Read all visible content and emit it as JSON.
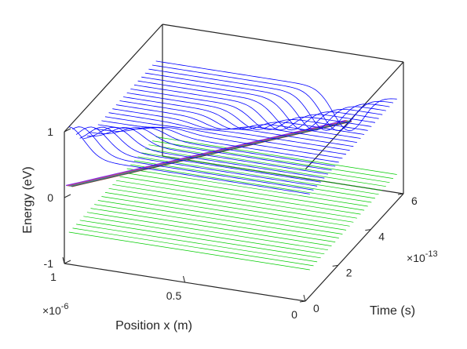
{
  "chart_data": {
    "type": "line",
    "view": "3d",
    "xlabel": "Position x (m)",
    "ylabel": "Time (s)",
    "zlabel": "Energy (eV)",
    "xlim": [
      0,
      1e-06
    ],
    "ylim": [
      0,
      6e-13
    ],
    "zlim": [
      -1,
      1
    ],
    "x_ticks": [
      0,
      5e-07,
      1e-06
    ],
    "x_tick_labels": [
      "0",
      "0.5",
      "1"
    ],
    "x_exponent": "10",
    "x_exponent_power": "-6",
    "y_ticks": [
      0,
      2e-13,
      4e-13,
      6e-13
    ],
    "y_tick_labels": [
      "0",
      "2",
      "4",
      "6"
    ],
    "y_exponent": "10",
    "y_exponent_power": "-13",
    "z_ticks": [
      -1,
      0,
      1
    ],
    "z_tick_labels": [
      "-1",
      "0",
      "1"
    ],
    "grid": false,
    "box": true,
    "time_steps": 25,
    "time_range": [
      2.8e-14,
      5.6e-13
    ],
    "series": [
      {
        "role": "conduction band edge",
        "color": "#0000ff",
        "x": [
          0,
          1e-06
        ],
        "shape": "flat level with a Gaussian bump that travels from x = 1.0e-6 at t = 0 to x = 0.2e-6 at t = 5.6e-13 and flips from +0.45 eV to -0.6 eV",
        "base_energy": 0.55,
        "bump_start_x": 1e-06,
        "bump_end_x": 2e-07,
        "bump_start_peak": 0.45,
        "bump_end_peak": -0.6
      },
      {
        "role": "valence band edge",
        "color": "#00cc00",
        "x": [
          0,
          1e-06
        ],
        "energy": -0.6
      },
      {
        "role": "electron trajectory",
        "color": "#7f2f2f",
        "x_range": [
          1e-06,
          2e-07
        ],
        "t_range": [
          2.8e-14,
          5.6e-13
        ],
        "energy": 0.1
      }
    ]
  }
}
